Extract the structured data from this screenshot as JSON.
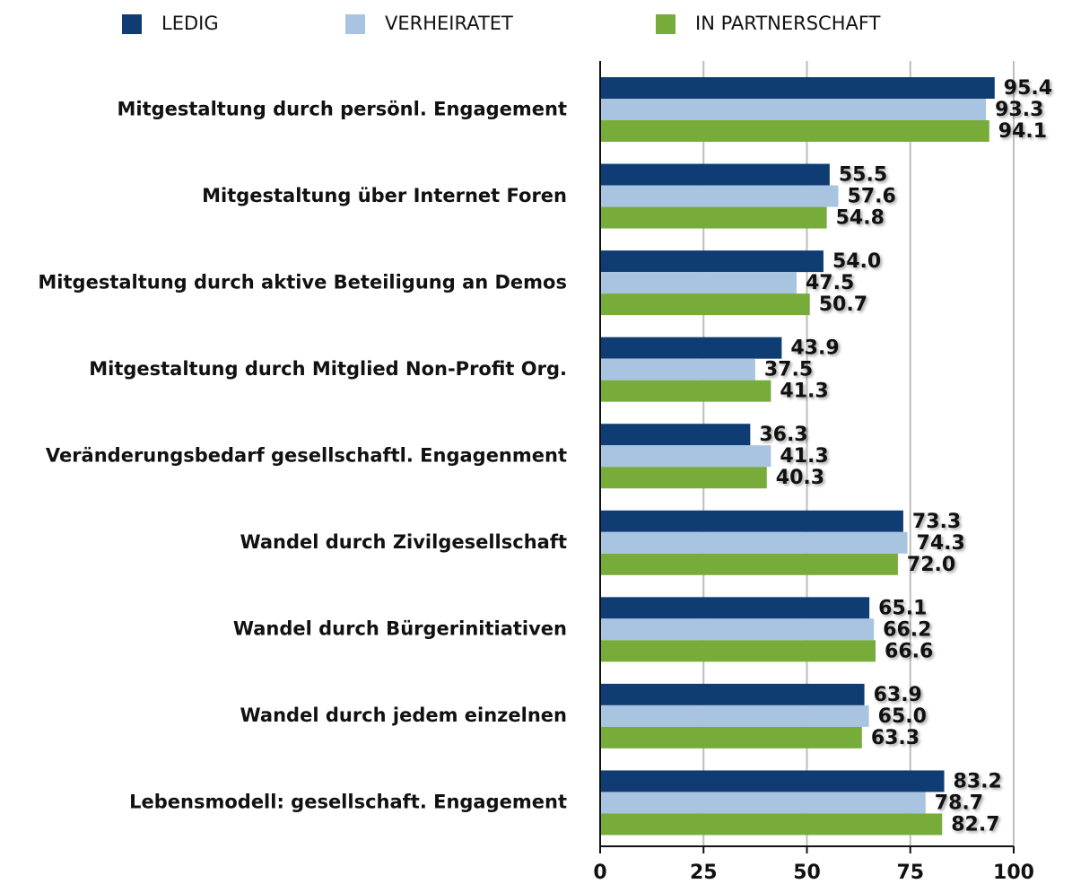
{
  "chart_data": {
    "type": "barh",
    "categories": [
      "Mitgestaltung durch persönl. Engagement",
      "Mitgestaltung über Internet Foren",
      "Mitgestaltung durch aktive Beteiligung an Demos",
      "Mitgestaltung durch Mitglied Non-Profit Org.",
      "Veränderungsbedarf gesellschaftl. Engagenment",
      "Wandel durch Zivilgesellschaft",
      "Wandel durch Bürgerinitiativen",
      "Wandel durch jedem einzelnen",
      "Lebensmodell: gesellschaft. Engagement"
    ],
    "series": [
      {
        "name": "LEDIG",
        "color": "#0f3c73",
        "values": [
          95.4,
          55.5,
          54.0,
          43.9,
          36.3,
          73.3,
          65.1,
          63.9,
          83.2
        ],
        "value_labels": [
          "95.4",
          "55.5",
          "54.0",
          "43.9",
          "36.3",
          "73.3",
          "65.1",
          "63.9",
          "83.2"
        ]
      },
      {
        "name": "VERHEIRATET",
        "color": "#a9c4e0",
        "values": [
          93.3,
          57.6,
          47.5,
          37.5,
          41.3,
          74.3,
          66.2,
          65.0,
          78.7
        ],
        "value_labels": [
          "93.3",
          "57.6",
          "47.5",
          "37.5",
          "41.3",
          "74.3",
          "66.2",
          "65.0",
          "78.7"
        ]
      },
      {
        "name": "IN PARTNERSCHAFT",
        "color": "#78ac3a",
        "values": [
          94.1,
          54.8,
          50.7,
          41.3,
          40.3,
          72.0,
          66.6,
          63.3,
          82.7
        ],
        "value_labels": [
          "94.1",
          "54.8",
          "50.7",
          "41.3",
          "40.3",
          "72.0",
          "66.6",
          "63.3",
          "82.7"
        ]
      }
    ],
    "xlim": [
      0,
      100
    ],
    "xticks": [
      0,
      25,
      50,
      75,
      100
    ],
    "grid": true
  }
}
